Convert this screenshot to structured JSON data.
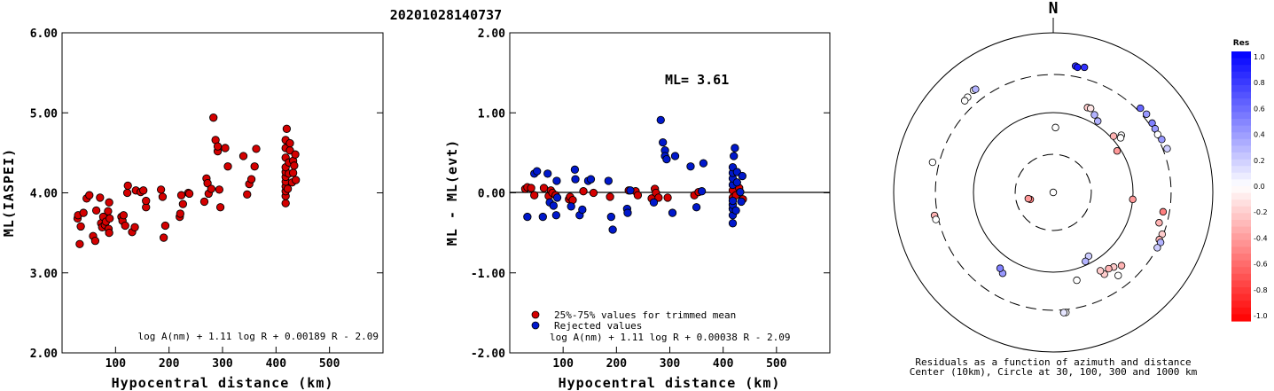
{
  "title": "20201028140737",
  "chart_data": [
    {
      "type": "scatter",
      "xlabel": "Hypocentral distance (km)",
      "ylabel": "ML(IASPEI)",
      "xticks": [
        "100",
        "200",
        "300",
        "400",
        "500"
      ],
      "yticks": [
        "2.00",
        "3.00",
        "4.00",
        "5.00",
        "6.00"
      ],
      "xlim": [
        0,
        600
      ],
      "ylim": [
        2,
        6
      ],
      "formula": "log A(nm) + 1.11 log R + 0.00189 R - 2.09",
      "series": [
        {
          "color": "#d40000",
          "points": [
            [
              29,
              3.68
            ],
            [
              30,
              3.72
            ],
            [
              33,
              3.36
            ],
            [
              35,
              3.58
            ],
            [
              40,
              3.75
            ],
            [
              46,
              3.93
            ],
            [
              51,
              3.97
            ],
            [
              58,
              3.46
            ],
            [
              62,
              3.4
            ],
            [
              64,
              3.78
            ],
            [
              71,
              3.94
            ],
            [
              73,
              3.62
            ],
            [
              75,
              3.57
            ],
            [
              77,
              3.7
            ],
            [
              80,
              3.6
            ],
            [
              82,
              3.64
            ],
            [
              86,
              3.77
            ],
            [
              87,
              3.55
            ],
            [
              88,
              3.5
            ],
            [
              89,
              3.68
            ],
            [
              88,
              3.88
            ],
            [
              111,
              3.7
            ],
            [
              113,
              3.65
            ],
            [
              115,
              3.72
            ],
            [
              118,
              3.59
            ],
            [
              122,
              4.0
            ],
            [
              123,
              4.09
            ],
            [
              131,
              3.51
            ],
            [
              136,
              3.57
            ],
            [
              138,
              4.03
            ],
            [
              147,
              4.01
            ],
            [
              152,
              4.03
            ],
            [
              157,
              3.82
            ],
            [
              157,
              3.9
            ],
            [
              185,
              4.04
            ],
            [
              188,
              3.95
            ],
            [
              190,
              3.44
            ],
            [
              193,
              3.59
            ],
            [
              220,
              3.7
            ],
            [
              221,
              3.74
            ],
            [
              223,
              3.97
            ],
            [
              226,
              3.86
            ],
            [
              236,
              4.0
            ],
            [
              238,
              3.99
            ],
            [
              266,
              3.89
            ],
            [
              270,
              4.18
            ],
            [
              272,
              4.12
            ],
            [
              274,
              3.99
            ],
            [
              279,
              4.05
            ],
            [
              283,
              4.94
            ],
            [
              287,
              4.66
            ],
            [
              291,
              4.52
            ],
            [
              291,
              4.58
            ],
            [
              294,
              4.04
            ],
            [
              296,
              3.82
            ],
            [
              305,
              4.56
            ],
            [
              310,
              4.33
            ],
            [
              339,
              4.46
            ],
            [
              346,
              3.98
            ],
            [
              350,
              4.11
            ],
            [
              354,
              4.17
            ],
            [
              360,
              4.33
            ],
            [
              363,
              4.55
            ],
            [
              418,
              3.87
            ],
            [
              418,
              3.96
            ],
            [
              418,
              4.02
            ],
            [
              418,
              4.08
            ],
            [
              418,
              4.14
            ],
            [
              418,
              4.2
            ],
            [
              418,
              4.26
            ],
            [
              418,
              4.32
            ],
            [
              418,
              4.44
            ],
            [
              418,
              4.56
            ],
            [
              418,
              4.66
            ],
            [
              420,
              4.8
            ],
            [
              422,
              4.05
            ],
            [
              424,
              4.24
            ],
            [
              424,
              4.38
            ],
            [
              426,
              4.53
            ],
            [
              426,
              4.62
            ],
            [
              430,
              4.13
            ],
            [
              432,
              4.25
            ],
            [
              432,
              4.4
            ],
            [
              434,
              4.34
            ],
            [
              436,
              4.48
            ],
            [
              437,
              4.16
            ]
          ]
        }
      ]
    },
    {
      "type": "scatter",
      "xlabel": "Hypocentral distance (km)",
      "ylabel": "ML - ML(evt)",
      "xticks": [
        "100",
        "200",
        "300",
        "400",
        "500"
      ],
      "yticks": [
        "-2.00",
        "-1.00",
        "0.00",
        "1.00",
        "2.00"
      ],
      "xlim": [
        0,
        600
      ],
      "ylim": [
        -2,
        2
      ],
      "annotation": "ML= 3.61",
      "formula": "log A(nm) + 1.11 log R + 0.00038 R - 2.09",
      "legend": [
        {
          "label": "25%-75% values for trimmed mean",
          "color": "#d40000"
        },
        {
          "label": "Rejected values",
          "color": "#0018cc"
        }
      ],
      "series": [
        {
          "name": "25%-75% values for trimmed mean",
          "color": "#d40000",
          "points": [
            [
              29,
              0.05
            ],
            [
              33,
              0.07
            ],
            [
              40,
              0.06
            ],
            [
              46,
              -0.03
            ],
            [
              64,
              0.06
            ],
            [
              73,
              -0.04
            ],
            [
              77,
              0.03
            ],
            [
              80,
              0.0
            ],
            [
              86,
              -0.03
            ],
            [
              111,
              -0.08
            ],
            [
              113,
              -0.05
            ],
            [
              118,
              -0.09
            ],
            [
              138,
              0.02
            ],
            [
              157,
              0.0
            ],
            [
              188,
              -0.05
            ],
            [
              223,
              0.03
            ],
            [
              236,
              0.02
            ],
            [
              240,
              -0.03
            ],
            [
              266,
              -0.07
            ],
            [
              272,
              0.05
            ],
            [
              274,
              0.0
            ],
            [
              279,
              -0.06
            ],
            [
              296,
              -0.06
            ],
            [
              346,
              -0.03
            ],
            [
              354,
              0.01
            ],
            [
              418,
              0.03
            ],
            [
              418,
              -0.06
            ],
            [
              424,
              -0.03
            ],
            [
              430,
              0.06
            ],
            [
              437,
              -0.08
            ]
          ]
        },
        {
          "name": "Rejected values",
          "color": "#0018cc",
          "points": [
            [
              33,
              -0.3
            ],
            [
              46,
              0.24
            ],
            [
              51,
              0.27
            ],
            [
              62,
              -0.3
            ],
            [
              71,
              0.24
            ],
            [
              75,
              -0.12
            ],
            [
              82,
              -0.16
            ],
            [
              87,
              -0.28
            ],
            [
              88,
              0.15
            ],
            [
              89,
              -0.06
            ],
            [
              115,
              -0.17
            ],
            [
              122,
              0.29
            ],
            [
              123,
              0.17
            ],
            [
              131,
              -0.28
            ],
            [
              136,
              -0.21
            ],
            [
              147,
              0.15
            ],
            [
              152,
              0.17
            ],
            [
              185,
              0.15
            ],
            [
              190,
              -0.3
            ],
            [
              193,
              -0.46
            ],
            [
              220,
              -0.2
            ],
            [
              221,
              -0.25
            ],
            [
              226,
              0.03
            ],
            [
              270,
              -0.12
            ],
            [
              283,
              0.91
            ],
            [
              287,
              0.63
            ],
            [
              291,
              0.53
            ],
            [
              291,
              0.46
            ],
            [
              294,
              0.42
            ],
            [
              305,
              -0.25
            ],
            [
              310,
              0.46
            ],
            [
              339,
              0.33
            ],
            [
              350,
              -0.18
            ],
            [
              360,
              0.02
            ],
            [
              363,
              0.37
            ],
            [
              418,
              -0.38
            ],
            [
              418,
              -0.28
            ],
            [
              418,
              -0.2
            ],
            [
              418,
              -0.15
            ],
            [
              418,
              -0.1
            ],
            [
              418,
              0.1
            ],
            [
              418,
              0.18
            ],
            [
              418,
              0.25
            ],
            [
              418,
              0.32
            ],
            [
              420,
              0.46
            ],
            [
              422,
              0.56
            ],
            [
              424,
              -0.22
            ],
            [
              426,
              0.13
            ],
            [
              426,
              0.26
            ],
            [
              432,
              0.01
            ],
            [
              434,
              -0.11
            ],
            [
              436,
              0.21
            ]
          ]
        }
      ]
    },
    {
      "type": "scatter",
      "projection": "polar",
      "north_label": "N",
      "caption_line1": "Residuals as a function of azimuth and distance",
      "caption_line2": "Center (10km), Circle at 30, 100, 300 and 1000 km",
      "rings": [
        {
          "value": 30,
          "style": "dashed"
        },
        {
          "value": 100,
          "style": "solid"
        },
        {
          "value": 300,
          "style": "dashed"
        },
        {
          "value": 1000,
          "style": "solid"
        }
      ],
      "colorbar": {
        "title": "Res",
        "range": [
          -1.0,
          1.0
        ],
        "labels": [
          "1.0",
          "0.8",
          "0.6",
          "0.4",
          "0.2",
          "0.0",
          "-0.2",
          "-0.4",
          "-0.6",
          "-0.8",
          "-1.0"
        ]
      },
      "point_fields": [
        "azimuth_deg",
        "distance_km",
        "residual"
      ],
      "points": [
        [
          322,
          420,
          0.0
        ],
        [
          323,
          415,
          0.3
        ],
        [
          318,
          402,
          0.0
        ],
        [
          316,
          395,
          0.0
        ],
        [
          284,
          362,
          0.0
        ],
        [
          259,
          328,
          -0.3
        ],
        [
          257,
          323,
          0.0
        ],
        [
          10,
          405,
          0.8
        ],
        [
          11,
          395,
          0.9
        ],
        [
          14,
          412,
          0.8
        ],
        [
          46,
          330,
          0.6
        ],
        [
          50,
          335,
          0.4
        ],
        [
          55,
          326,
          0.5
        ],
        [
          58,
          320,
          0.4
        ],
        [
          61,
          314,
          0.0
        ],
        [
          64,
          326,
          0.4
        ],
        [
          69,
          338,
          0.2
        ],
        [
          22,
          140,
          -0.2
        ],
        [
          24,
          142,
          -0.1
        ],
        [
          28,
          126,
          0.3
        ],
        [
          32,
          113,
          0.3
        ],
        [
          50,
          130,
          0.0
        ],
        [
          51,
          122,
          0.0
        ],
        [
          47,
          108,
          -0.3
        ],
        [
          57,
          90,
          -0.4
        ],
        [
          2,
          65,
          0.0
        ],
        [
          0,
          10,
          0.0
        ],
        [
          95,
          100,
          -0.4
        ],
        [
          100,
          250,
          -0.5
        ],
        [
          106,
          240,
          -0.3
        ],
        [
          111,
          290,
          -0.2
        ],
        [
          114,
          285,
          -0.3
        ],
        [
          115,
          305,
          0.3
        ],
        [
          118,
          300,
          0.2
        ],
        [
          137,
          180,
          -0.3
        ],
        [
          141,
          160,
          -0.2
        ],
        [
          144,
          152,
          -0.3
        ],
        [
          148,
          162,
          -0.2
        ],
        [
          149,
          140,
          -0.2
        ],
        [
          151,
          82,
          0.2
        ],
        [
          155,
          90,
          0.3
        ],
        [
          142,
          210,
          0.0
        ],
        [
          165,
          138,
          0.0
        ],
        [
          174,
          326,
          0.0
        ],
        [
          175,
          325,
          0.1
        ],
        [
          212,
          157,
          0.4
        ],
        [
          215,
          145,
          0.5
        ],
        [
          253,
          20,
          -0.5
        ],
        [
          256,
          21,
          -0.4
        ]
      ]
    }
  ]
}
